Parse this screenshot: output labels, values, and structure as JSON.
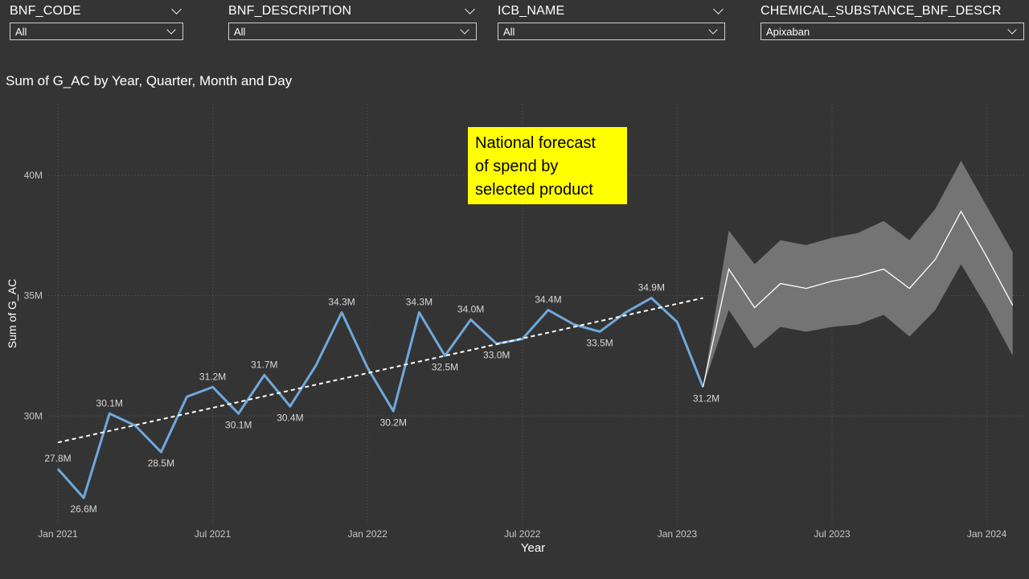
{
  "filters": [
    {
      "title": "BNF_CODE",
      "value": "All"
    },
    {
      "title": "BNF_DESCRIPTION",
      "value": "All"
    },
    {
      "title": "ICB_NAME",
      "value": "All"
    },
    {
      "title": "CHEMICAL_SUBSTANCE_BNF_DESCR",
      "value": "Apixaban"
    }
  ],
  "note": {
    "lines": [
      "National forecast",
      "of spend by",
      "selected product"
    ],
    "background": "#ffff00"
  },
  "chart_data": {
    "type": "line",
    "title": "Sum of G_AC by Year, Quarter, Month and Day",
    "xlabel": "Year",
    "ylabel": "Sum of G_AC",
    "x_ticks": [
      "Jan 2021",
      "Jul 2021",
      "Jan 2022",
      "Jul 2022",
      "Jan 2023",
      "Jul 2023",
      "Jan 2024"
    ],
    "y_ticks": [
      "30M",
      "35M",
      "40M"
    ],
    "ylim": [
      25.5,
      42
    ],
    "series": [
      {
        "role": "actual",
        "color": "#6fa8dc",
        "x": [
          "2021-01",
          "2021-02",
          "2021-03",
          "2021-04",
          "2021-05",
          "2021-06",
          "2021-07",
          "2021-08",
          "2021-09",
          "2021-10",
          "2021-11",
          "2021-12",
          "2022-01",
          "2022-02",
          "2022-03",
          "2022-04",
          "2022-05",
          "2022-06",
          "2022-07",
          "2022-08",
          "2022-09",
          "2022-10",
          "2022-11",
          "2022-12",
          "2023-01",
          "2023-02"
        ],
        "values": [
          27.8,
          26.6,
          30.1,
          29.6,
          28.5,
          30.8,
          31.2,
          30.1,
          31.7,
          30.4,
          32.1,
          34.3,
          32.0,
          30.2,
          34.3,
          32.5,
          34.0,
          33.0,
          33.2,
          34.4,
          33.8,
          33.5,
          34.3,
          34.9,
          33.9,
          31.2
        ],
        "data_labels": [
          {
            "x": "2021-01",
            "label": "27.8M"
          },
          {
            "x": "2021-02",
            "label": "26.6M"
          },
          {
            "x": "2021-03",
            "label": "30.1M"
          },
          {
            "x": "2021-05",
            "label": "28.5M"
          },
          {
            "x": "2021-07",
            "label": "31.2M"
          },
          {
            "x": "2021-08",
            "label": "30.1M"
          },
          {
            "x": "2021-09",
            "label": "31.7M"
          },
          {
            "x": "2021-10",
            "label": "30.4M"
          },
          {
            "x": "2021-12",
            "label": "34.3M"
          },
          {
            "x": "2022-02",
            "label": "30.2M"
          },
          {
            "x": "2022-03",
            "label": "34.3M"
          },
          {
            "x": "2022-04",
            "label": "32.5M"
          },
          {
            "x": "2022-05",
            "label": "34.0M"
          },
          {
            "x": "2022-06",
            "label": "33.0M"
          },
          {
            "x": "2022-08",
            "label": "34.4M"
          },
          {
            "x": "2022-10",
            "label": "33.5M"
          },
          {
            "x": "2022-12",
            "label": "34.9M"
          },
          {
            "x": "2023-02",
            "label": "31.2M"
          }
        ]
      },
      {
        "role": "trend",
        "color": "#ffffff",
        "style": "dashed",
        "x": [
          "2021-01",
          "2023-02"
        ],
        "values": [
          28.9,
          34.9
        ]
      },
      {
        "role": "forecast",
        "color": "#ffffff",
        "band_color": "#808080",
        "x": [
          "2023-02",
          "2023-03",
          "2023-04",
          "2023-05",
          "2023-06",
          "2023-07",
          "2023-08",
          "2023-09",
          "2023-10",
          "2023-11",
          "2023-12",
          "2024-01",
          "2024-02"
        ],
        "values": [
          31.2,
          36.1,
          34.5,
          35.5,
          35.3,
          35.6,
          35.8,
          36.1,
          35.3,
          36.5,
          38.5,
          36.6,
          34.6
        ],
        "upper": [
          31.2,
          37.7,
          36.3,
          37.3,
          37.1,
          37.4,
          37.6,
          38.1,
          37.3,
          38.6,
          40.6,
          38.7,
          36.8
        ],
        "lower": [
          31.2,
          34.4,
          32.8,
          33.7,
          33.5,
          33.7,
          33.8,
          34.2,
          33.3,
          34.4,
          36.3,
          34.5,
          32.5
        ]
      }
    ]
  }
}
